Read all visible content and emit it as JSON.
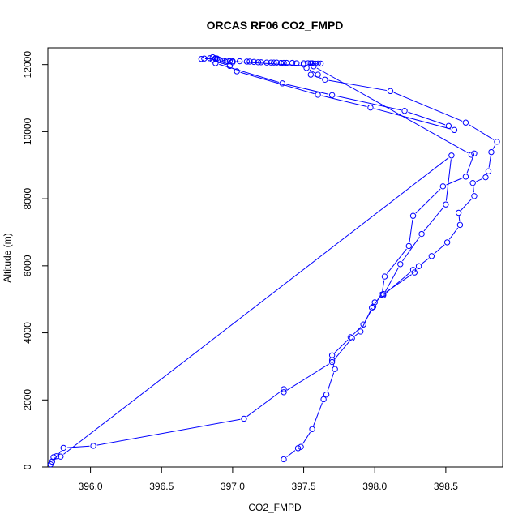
{
  "chart_data": {
    "type": "line",
    "title": "ORCAS RF06 CO2_FMPD",
    "xlabel": "CO2_FMPD",
    "ylabel": "Altitude (m)",
    "xlim": [
      395.7,
      398.9
    ],
    "ylim": [
      0,
      12500
    ],
    "xticks": [
      396.0,
      396.5,
      397.0,
      397.5,
      398.0,
      398.5
    ],
    "xtick_labels": [
      "396.0",
      "396.5",
      "397.0",
      "397.5",
      "398.0",
      "398.5"
    ],
    "yticks": [
      0,
      2000,
      4000,
      6000,
      8000,
      10000,
      12000
    ],
    "ytick_labels": [
      "0",
      "2000",
      "4000",
      "6000",
      "8000",
      "10000",
      "12000"
    ],
    "grid": false,
    "marker": "open-circle",
    "series": [
      {
        "color": "#0000ff",
        "points": [
          [
            397.36,
            230
          ],
          [
            397.46,
            560
          ],
          [
            397.48,
            600
          ],
          [
            397.56,
            1130
          ],
          [
            397.64,
            2020
          ],
          [
            397.66,
            2160
          ],
          [
            397.72,
            2920
          ],
          [
            397.7,
            3190
          ],
          [
            397.7,
            3330
          ],
          [
            397.83,
            3870
          ],
          [
            397.92,
            4250
          ],
          [
            397.99,
            4780
          ],
          [
            398.0,
            4910
          ],
          [
            398.06,
            5160
          ],
          [
            398.28,
            5800
          ],
          [
            398.31,
            5990
          ],
          [
            398.4,
            6290
          ],
          [
            398.51,
            6700
          ],
          [
            398.6,
            7220
          ],
          [
            398.59,
            7580
          ],
          [
            398.7,
            8080
          ],
          [
            398.69,
            8470
          ],
          [
            398.78,
            8640
          ],
          [
            398.8,
            8820
          ],
          [
            398.82,
            9390
          ],
          [
            398.86,
            9700
          ],
          [
            398.64,
            10270
          ],
          [
            398.11,
            11210
          ],
          [
            397.65,
            11550
          ],
          [
            397.55,
            11700
          ],
          [
            397.6,
            11700
          ],
          [
            397.52,
            11900
          ],
          [
            397.5,
            12000
          ],
          [
            397.62,
            12030
          ],
          [
            397.6,
            12030
          ],
          [
            397.58,
            12030
          ],
          [
            397.56,
            12040
          ],
          [
            397.55,
            12040
          ],
          [
            397.53,
            12040
          ],
          [
            397.5,
            12040
          ],
          [
            397.45,
            12040
          ],
          [
            397.42,
            12050
          ],
          [
            397.38,
            12050
          ],
          [
            397.36,
            12050
          ],
          [
            397.34,
            12050
          ],
          [
            397.31,
            12060
          ],
          [
            397.29,
            12060
          ],
          [
            397.27,
            12060
          ],
          [
            397.24,
            12060
          ],
          [
            397.2,
            12070
          ],
          [
            397.18,
            12070
          ],
          [
            397.15,
            12080
          ],
          [
            397.12,
            12090
          ],
          [
            397.1,
            12090
          ],
          [
            397.05,
            12100
          ],
          [
            397.0,
            12100
          ],
          [
            396.96,
            12110
          ],
          [
            396.93,
            12110
          ],
          [
            396.9,
            12150
          ],
          [
            396.88,
            12190
          ],
          [
            396.86,
            12220
          ],
          [
            396.84,
            12190
          ],
          [
            396.8,
            12180
          ],
          [
            396.78,
            12170
          ],
          [
            396.89,
            12180
          ],
          [
            396.91,
            12130
          ],
          [
            396.95,
            12080
          ],
          [
            397.0,
            12070
          ],
          [
            396.98,
            11960
          ],
          [
            397.03,
            11800
          ],
          [
            397.6,
            11100
          ],
          [
            397.97,
            10720
          ],
          [
            398.56,
            10050
          ],
          [
            398.52,
            10170
          ],
          [
            398.21,
            10620
          ],
          [
            397.7,
            11090
          ],
          [
            397.35,
            11440
          ],
          [
            396.88,
            12040
          ],
          [
            396.86,
            12140
          ],
          [
            396.88,
            12180
          ],
          [
            396.91,
            12140
          ],
          [
            396.98,
            12100
          ],
          [
            397.57,
            11950
          ],
          [
            398.68,
            9310
          ],
          [
            398.7,
            9350
          ],
          [
            398.64,
            8660
          ],
          [
            398.48,
            8370
          ],
          [
            398.27,
            7490
          ],
          [
            398.24,
            6590
          ],
          [
            398.07,
            5680
          ],
          [
            398.05,
            5140
          ],
          [
            397.98,
            4750
          ],
          [
            397.9,
            4040
          ],
          [
            397.84,
            3840
          ],
          [
            397.7,
            3130
          ],
          [
            397.36,
            2230
          ],
          [
            397.36,
            2320
          ],
          [
            397.08,
            1440
          ],
          [
            396.02,
            630
          ],
          [
            395.81,
            570
          ],
          [
            395.72,
            80
          ],
          [
            395.73,
            160
          ],
          [
            395.74,
            290
          ],
          [
            395.76,
            320
          ],
          [
            395.79,
            310
          ],
          [
            398.54,
            9290
          ],
          [
            398.5,
            7830
          ],
          [
            398.33,
            6950
          ],
          [
            398.18,
            6050
          ],
          [
            398.06,
            5120
          ],
          [
            398.27,
            5880
          ]
        ]
      }
    ]
  }
}
